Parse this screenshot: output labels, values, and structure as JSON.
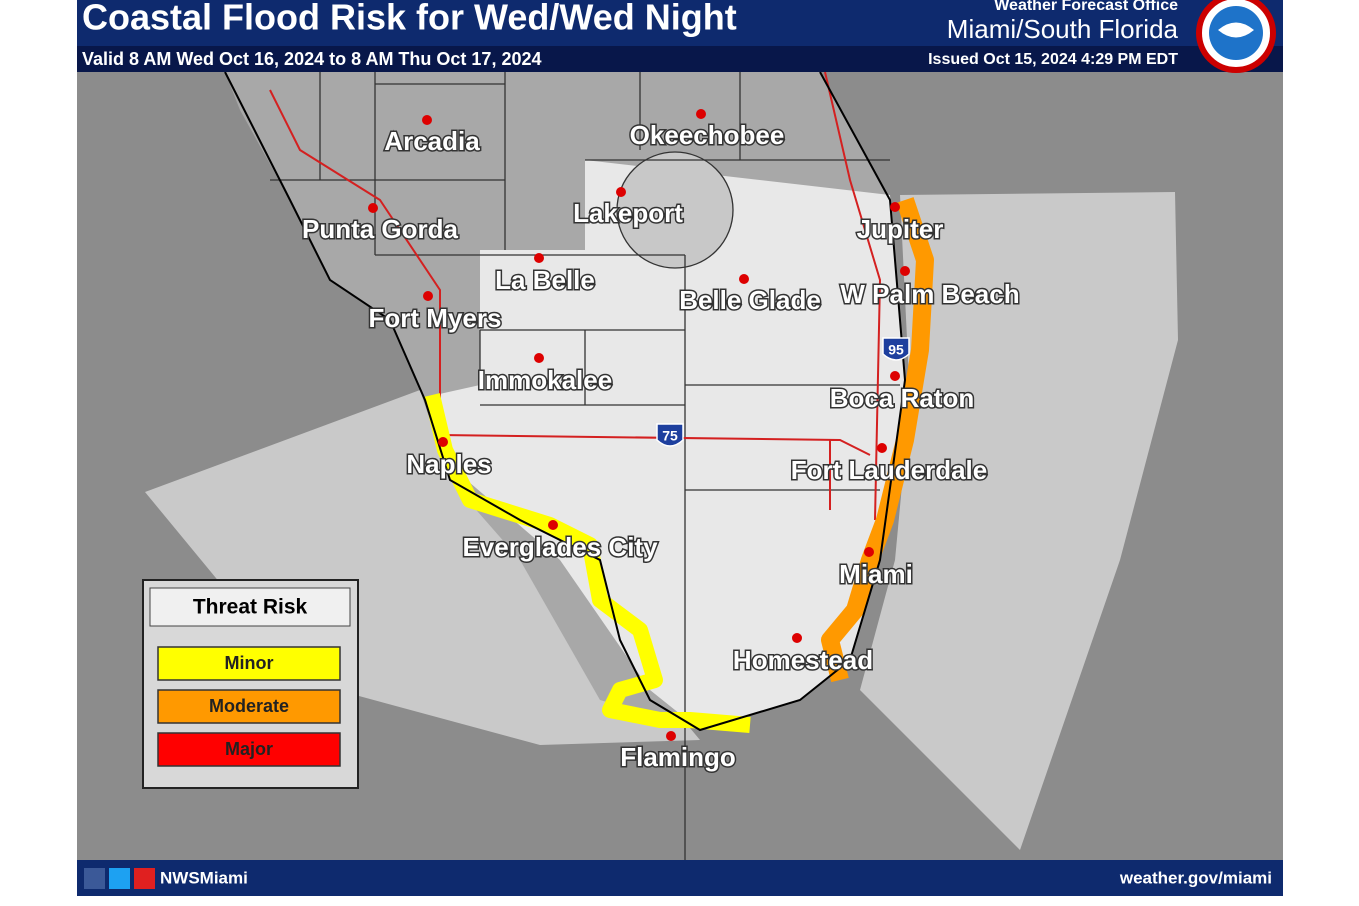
{
  "header": {
    "title": "Coastal Flood Risk for Wed/Wed Night",
    "valid": "Valid 8 AM Wed Oct 16, 2024 to 8 AM Thu Oct 17, 2024",
    "office_label": "Weather Forecast Office",
    "office": "Miami/South Florida",
    "issued": "Issued Oct 15, 2024 4:29 PM EDT"
  },
  "map": {
    "cities": [
      "Arcadia",
      "Okeechobee",
      "Lakeport",
      "Punta Gorda",
      "Jupiter",
      "La Belle",
      "Belle Glade",
      "W Palm Beach",
      "Fort Myers",
      "Immokalee",
      "Boca Raton",
      "Naples",
      "Fort Lauderdale",
      "Everglades City",
      "Miami",
      "Homestead",
      "Flamingo"
    ],
    "highways": [
      "75",
      "95"
    ]
  },
  "legend": {
    "title": "Threat Risk",
    "items": [
      {
        "label": "Minor",
        "color": "#ffff00"
      },
      {
        "label": "Moderate",
        "color": "#ff9900"
      },
      {
        "label": "Major",
        "color": "#ff0000"
      }
    ]
  },
  "footer": {
    "handle": "NWSMiami",
    "url": "weather.gov/miami"
  }
}
